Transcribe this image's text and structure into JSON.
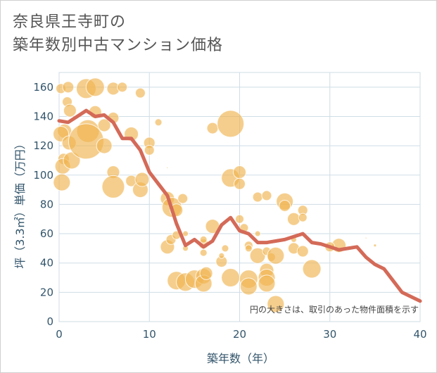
{
  "title_line1": "奈良県王寺町の",
  "title_line2": "築年数別中古マンション価格",
  "colors": {
    "bubble": "#f0b450",
    "line": "#d46a58",
    "grid": "#cfdde6",
    "axis_text": "#33556b",
    "title_text": "#555555"
  },
  "chart_data": {
    "type": "scatter",
    "xlabel": "築年数（年）",
    "ylabel": "坪（3.3㎡）単価（万円）",
    "xlim": [
      0,
      40
    ],
    "ylim": [
      0,
      170
    ],
    "xticks": [
      "0",
      "10",
      "20",
      "30",
      "40"
    ],
    "yticks": [
      "0",
      "20",
      "40",
      "60",
      "80",
      "100",
      "120",
      "140",
      "160"
    ],
    "grid": true,
    "annotation": "円の大きさは、取引のあった物件面積を示す",
    "bubbles": [
      {
        "x": 0.2,
        "y": 159,
        "r": 7
      },
      {
        "x": 1,
        "y": 160,
        "r": 8
      },
      {
        "x": 0.9,
        "y": 150,
        "r": 7
      },
      {
        "x": 1.2,
        "y": 144,
        "r": 9
      },
      {
        "x": 0.6,
        "y": 130,
        "r": 10
      },
      {
        "x": 0.2,
        "y": 128,
        "r": 11
      },
      {
        "x": 0.5,
        "y": 111,
        "r": 8
      },
      {
        "x": 0.4,
        "y": 106,
        "r": 11
      },
      {
        "x": 0.3,
        "y": 95,
        "r": 12
      },
      {
        "x": 1.1,
        "y": 122,
        "r": 10
      },
      {
        "x": 1.4,
        "y": 110,
        "r": 12
      },
      {
        "x": 3,
        "y": 159,
        "r": 14
      },
      {
        "x": 4,
        "y": 160,
        "r": 13
      },
      {
        "x": 3.2,
        "y": 130,
        "r": 16
      },
      {
        "x": 3,
        "y": 123,
        "r": 25
      },
      {
        "x": 4,
        "y": 143,
        "r": 9
      },
      {
        "x": 5,
        "y": 134,
        "r": 9
      },
      {
        "x": 5,
        "y": 120,
        "r": 11
      },
      {
        "x": 6,
        "y": 159,
        "r": 9
      },
      {
        "x": 6,
        "y": 139,
        "r": 8
      },
      {
        "x": 6,
        "y": 102,
        "r": 9
      },
      {
        "x": 6,
        "y": 92,
        "r": 16
      },
      {
        "x": 7,
        "y": 160,
        "r": 7
      },
      {
        "x": 8,
        "y": 128,
        "r": 10
      },
      {
        "x": 8,
        "y": 96,
        "r": 8
      },
      {
        "x": 9,
        "y": 156,
        "r": 7
      },
      {
        "x": 9,
        "y": 90,
        "r": 11
      },
      {
        "x": 9.2,
        "y": 97,
        "r": 10
      },
      {
        "x": 10,
        "y": 122,
        "r": 8
      },
      {
        "x": 10,
        "y": 117,
        "r": 7
      },
      {
        "x": 11,
        "y": 136,
        "r": 5
      },
      {
        "x": 12,
        "y": 105,
        "r": 1
      },
      {
        "x": 12,
        "y": 84,
        "r": 10
      },
      {
        "x": 12.5,
        "y": 78,
        "r": 14
      },
      {
        "x": 13,
        "y": 76,
        "r": 9
      },
      {
        "x": 13.7,
        "y": 84,
        "r": 7
      },
      {
        "x": 12,
        "y": 51,
        "r": 10
      },
      {
        "x": 12.4,
        "y": 56,
        "r": 7
      },
      {
        "x": 13,
        "y": 59,
        "r": 6
      },
      {
        "x": 14,
        "y": 60,
        "r": 4
      },
      {
        "x": 14,
        "y": 50,
        "r": 4
      },
      {
        "x": 16,
        "y": 53,
        "r": 7
      },
      {
        "x": 16,
        "y": 56,
        "r": 5
      },
      {
        "x": 16,
        "y": 47,
        "r": 5
      },
      {
        "x": 17,
        "y": 65,
        "r": 10
      },
      {
        "x": 13,
        "y": 28,
        "r": 13
      },
      {
        "x": 14,
        "y": 27,
        "r": 13
      },
      {
        "x": 15,
        "y": 29,
        "r": 13
      },
      {
        "x": 16,
        "y": 31,
        "r": 11
      },
      {
        "x": 16,
        "y": 26,
        "r": 12
      },
      {
        "x": 16.3,
        "y": 33,
        "r": 9
      },
      {
        "x": 17,
        "y": 132,
        "r": 8
      },
      {
        "x": 18,
        "y": 41,
        "r": 8
      },
      {
        "x": 18,
        "y": 45,
        "r": 4
      },
      {
        "x": 18.4,
        "y": 50,
        "r": 5
      },
      {
        "x": 19,
        "y": 135,
        "r": 19
      },
      {
        "x": 19,
        "y": 98,
        "r": 13
      },
      {
        "x": 19,
        "y": 30,
        "r": 13
      },
      {
        "x": 20,
        "y": 102,
        "r": 9
      },
      {
        "x": 20,
        "y": 94,
        "r": 8
      },
      {
        "x": 20,
        "y": 70,
        "r": 6
      },
      {
        "x": 20.5,
        "y": 64,
        "r": 6
      },
      {
        "x": 21,
        "y": 52,
        "r": 6
      },
      {
        "x": 21,
        "y": 50,
        "r": 5
      },
      {
        "x": 21,
        "y": 29,
        "r": 13
      },
      {
        "x": 21,
        "y": 24,
        "r": 12
      },
      {
        "x": 22,
        "y": 45,
        "r": 11
      },
      {
        "x": 22,
        "y": 85,
        "r": 7
      },
      {
        "x": 22,
        "y": 60,
        "r": 4
      },
      {
        "x": 23,
        "y": 86,
        "r": 7
      },
      {
        "x": 23,
        "y": 48,
        "r": 6
      },
      {
        "x": 23,
        "y": 35,
        "r": 10
      },
      {
        "x": 23,
        "y": 30,
        "r": 12
      },
      {
        "x": 23,
        "y": 26,
        "r": 12
      },
      {
        "x": 23.5,
        "y": 44,
        "r": 6
      },
      {
        "x": 24,
        "y": 45,
        "r": 12
      },
      {
        "x": 24,
        "y": 12,
        "r": 12
      },
      {
        "x": 25,
        "y": 82,
        "r": 12
      },
      {
        "x": 25,
        "y": 79,
        "r": 8
      },
      {
        "x": 26,
        "y": 70,
        "r": 9
      },
      {
        "x": 26,
        "y": 50,
        "r": 8
      },
      {
        "x": 26,
        "y": 56,
        "r": 4
      },
      {
        "x": 27,
        "y": 76,
        "r": 7
      },
      {
        "x": 27,
        "y": 71,
        "r": 6
      },
      {
        "x": 27,
        "y": 48,
        "r": 8
      },
      {
        "x": 28,
        "y": 36,
        "r": 13
      },
      {
        "x": 31,
        "y": 52,
        "r": 10
      },
      {
        "x": 30,
        "y": 51,
        "r": 7
      },
      {
        "x": 34,
        "y": 57,
        "r": 1
      },
      {
        "x": 35,
        "y": 52,
        "r": 2
      }
    ],
    "series": [
      {
        "x": [
          0,
          1,
          2,
          3,
          4,
          5,
          6,
          7,
          8,
          9,
          10,
          11,
          12,
          13,
          14,
          15,
          16,
          17,
          18,
          19,
          20,
          21,
          22,
          23,
          24,
          25,
          26,
          27,
          28,
          29,
          30,
          31,
          32,
          33,
          34,
          35,
          36,
          37,
          38,
          39,
          40
        ],
        "values": [
          137,
          136,
          140,
          144,
          140,
          141,
          136,
          125,
          125,
          117,
          102,
          94,
          86,
          67,
          52,
          56,
          51,
          55,
          66,
          71,
          62,
          60,
          54,
          54,
          55,
          56,
          58,
          60,
          54,
          53,
          51,
          49,
          50,
          51,
          44,
          39,
          36,
          28,
          20,
          17,
          14
        ]
      }
    ]
  }
}
